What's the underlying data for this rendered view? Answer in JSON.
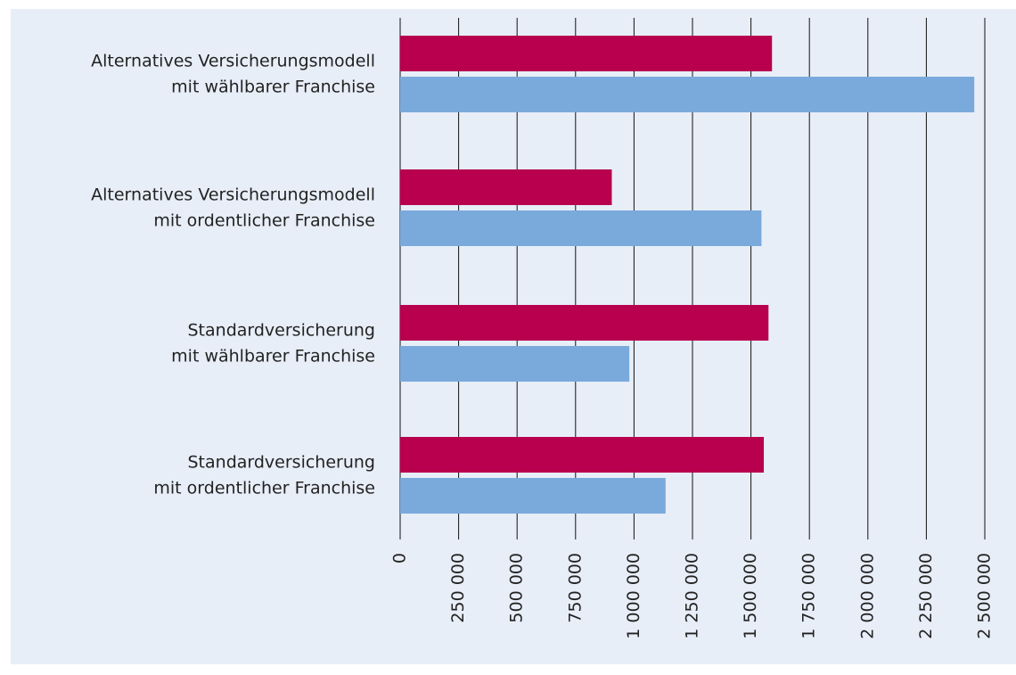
{
  "chart_data": {
    "type": "hbar",
    "categories": [
      [
        "Alternatives Versicherungsmodell",
        "mit wählbarer Franchise"
      ],
      [
        "Alternatives Versicherungsmodell",
        "mit ordentlicher Franchise"
      ],
      [
        "Standardversicherung",
        "mit wählbarer Franchise"
      ],
      [
        "Standardversicherung",
        "mit ordentlicher Franchise"
      ]
    ],
    "series": [
      {
        "color": "#b8004f",
        "values": [
          1590000,
          905000,
          1575000,
          1555000
        ]
      },
      {
        "color": "#7aaadc",
        "values": [
          2455000,
          1545000,
          980000,
          1135000
        ]
      }
    ],
    "xlim": [
      0,
      2500000
    ],
    "xticks": [
      0,
      {
        "value": 250000,
        "label": "250 000"
      },
      {
        "value": 500000,
        "label": "500 000"
      },
      {
        "value": 750000,
        "label": "750 000"
      },
      {
        "value": 1000000,
        "label": "1 000 000"
      },
      {
        "value": 1250000,
        "label": "1 250 000"
      },
      {
        "value": 1500000,
        "label": "1 500 000"
      },
      {
        "value": 1750000,
        "label": "1 750 000"
      },
      {
        "value": 2000000,
        "label": "2 000 000"
      },
      {
        "value": 2250000,
        "label": "2 250 000"
      },
      {
        "value": 2500000,
        "label": "2 500 000"
      }
    ],
    "grid": true
  }
}
